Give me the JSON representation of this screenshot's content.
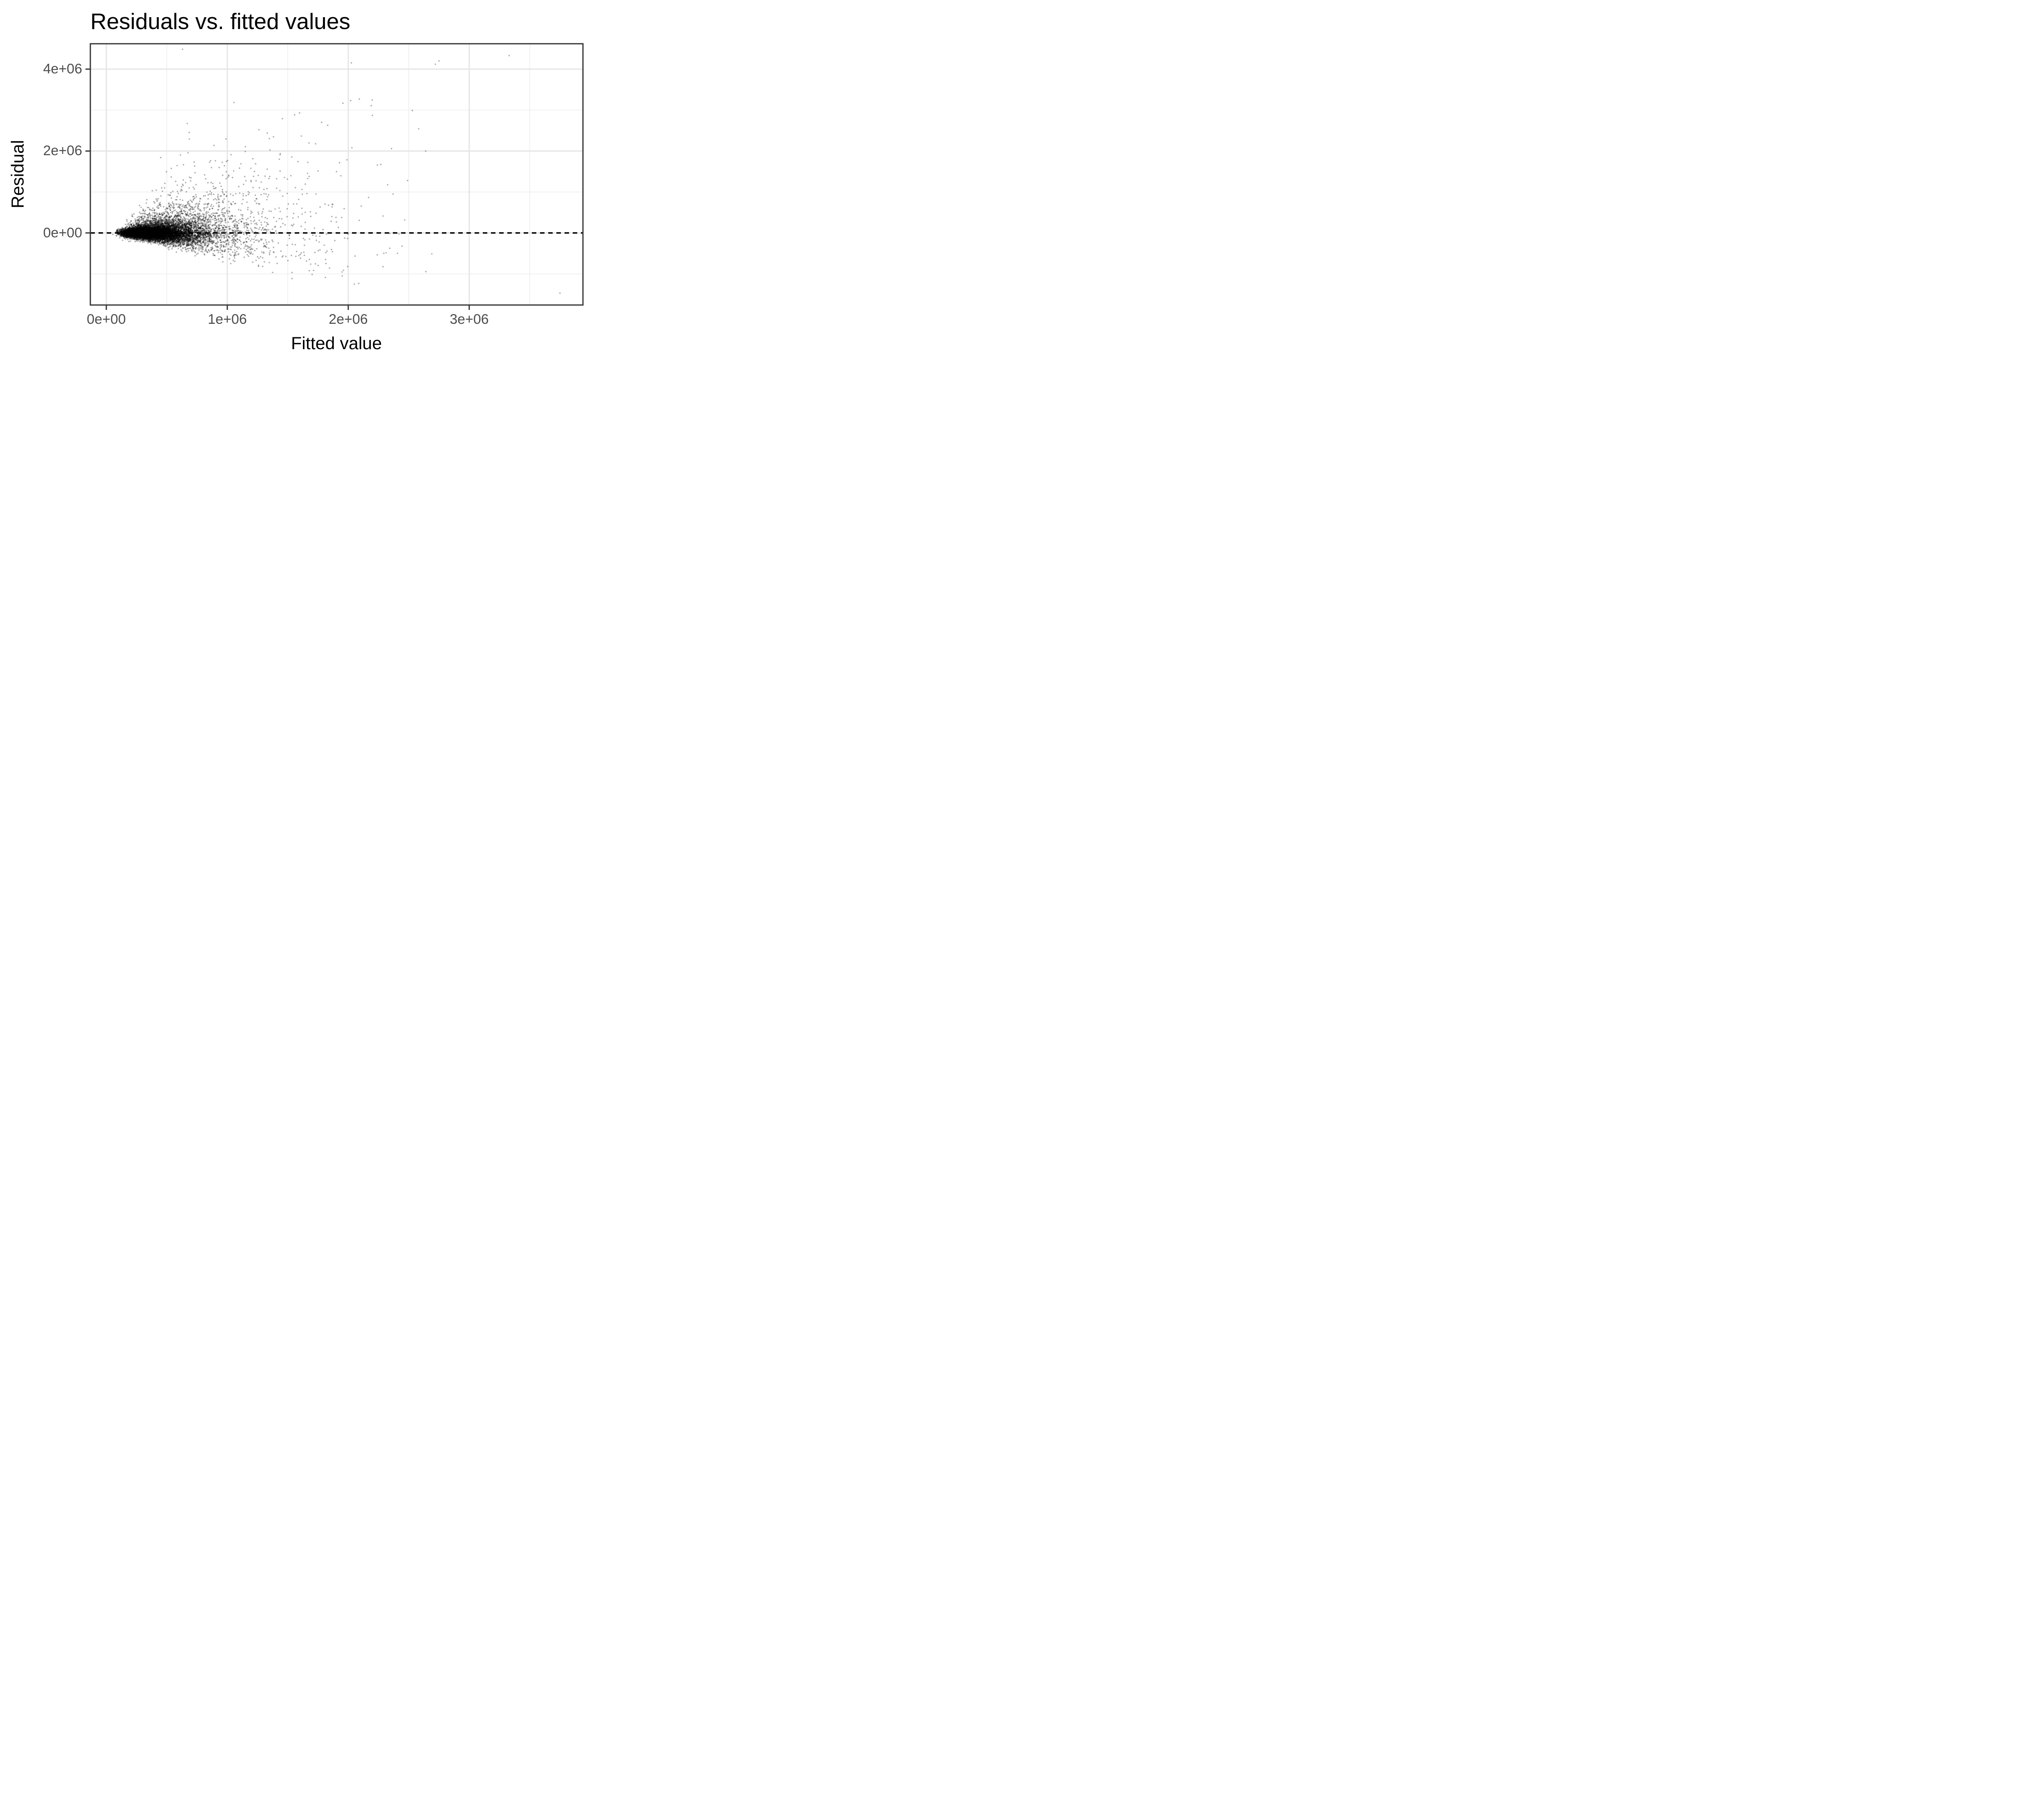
{
  "chart_data": {
    "type": "scatter",
    "title": "Residuals vs. fitted values",
    "xlabel": "Fitted value",
    "ylabel": "Residual",
    "x_domain": [
      -132000,
      3940000
    ],
    "y_domain": [
      -1760000,
      4620000
    ],
    "x_ticks": {
      "values": [
        0,
        1000000,
        2000000,
        3000000
      ],
      "labels": [
        "0e+00",
        "1e+06",
        "2e+06",
        "3e+06"
      ]
    },
    "y_ticks": {
      "values": [
        0,
        2000000,
        4000000
      ],
      "labels": [
        "0e+00",
        "2e+06",
        "4e+06"
      ]
    },
    "x_minor_ticks": [
      500000,
      1500000,
      2500000,
      3500000
    ],
    "y_minor_ticks": [
      -1000000,
      1000000,
      3000000
    ],
    "grid": true,
    "legend": "none",
    "reference_line": {
      "y": 0,
      "style": "dashed",
      "color": "#000000",
      "dash": [
        11,
        9
      ],
      "width": 3.5
    },
    "points_style": {
      "color": "#000000",
      "alpha": 0.4,
      "radius_px": 1.7
    },
    "n_points_approx": 12250,
    "cloud_model": {
      "description": "heteroscedastic fan of residuals vs fitted values; residual = fitted*(exp(Normal(mu,sigma))-1), spread grows with fitted value, right-skewed with positive outliers; dense cigar-shaped core hugging zero for fitted 50e3-1e6, sparse fan to 3.9e6",
      "seed": 42,
      "layers": [
        {
          "name": "dense-core",
          "n": 9300,
          "x_lognormal_median": 360000,
          "x_lognormal_sigma": 0.45,
          "x_clip": [
            50000,
            1350000
          ],
          "r_sigma_base": 0.13,
          "r_sigma_slope": 0.1,
          "heavy_prob": 0.18,
          "heavy_mult": 2.1,
          "r_additive_sd": 45000
        },
        {
          "name": "mid-spread",
          "n": 2600,
          "x_lognormal_median": 550000,
          "x_lognormal_sigma": 0.55,
          "x_clip": [
            120000,
            2000000
          ],
          "r_mu": 0.08,
          "r_sigma": 0.45
        },
        {
          "name": "wide-sparse",
          "n": 430,
          "x_lognormal_median": 950000,
          "x_lognormal_sigma": 0.55,
          "x_clip": [
            300000,
            2750000
          ],
          "r_mu": 0.05,
          "r_sigma": 0.55
        }
      ]
    },
    "outliers": [
      {
        "x": 2750000,
        "y": 4200000
      },
      {
        "x": 3330000,
        "y": 4330000
      },
      {
        "x": 2720000,
        "y": 4120000
      },
      {
        "x": 2020000,
        "y": 3230000
      },
      {
        "x": 2190000,
        "y": 3110000
      },
      {
        "x": 2530000,
        "y": 2990000
      },
      {
        "x": 2200000,
        "y": 2870000
      },
      {
        "x": 1780000,
        "y": 2700000
      },
      {
        "x": 1830000,
        "y": 2630000
      },
      {
        "x": 2030000,
        "y": 2080000
      },
      {
        "x": 2640000,
        "y": 2000000
      },
      {
        "x": 1950000,
        "y": -1050000
      },
      {
        "x": 2050000,
        "y": -1250000
      },
      {
        "x": 3750000,
        "y": -1470000
      }
    ],
    "colors": {
      "background": "#FFFFFF",
      "grid_major": "#E5E5E5",
      "grid_minor": "#EFEFEF",
      "panel_border": "#333333",
      "tick": "#333333",
      "tick_label": "#4D4D4D",
      "axis_title": "#000000",
      "title": "#000000",
      "point": "#000000"
    }
  }
}
